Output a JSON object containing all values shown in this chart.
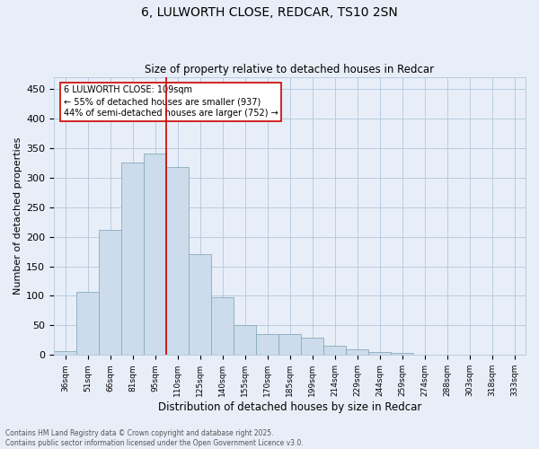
{
  "title_line1": "6, LULWORTH CLOSE, REDCAR, TS10 2SN",
  "title_line2": "Size of property relative to detached houses in Redcar",
  "xlabel": "Distribution of detached houses by size in Redcar",
  "ylabel": "Number of detached properties",
  "categories": [
    "36sqm",
    "51sqm",
    "66sqm",
    "81sqm",
    "95sqm",
    "110sqm",
    "125sqm",
    "140sqm",
    "155sqm",
    "170sqm",
    "185sqm",
    "199sqm",
    "214sqm",
    "229sqm",
    "244sqm",
    "259sqm",
    "274sqm",
    "288sqm",
    "303sqm",
    "318sqm",
    "333sqm"
  ],
  "values": [
    7,
    107,
    211,
    325,
    340,
    318,
    170,
    98,
    50,
    36,
    36,
    29,
    15,
    9,
    5,
    4,
    1,
    1,
    0,
    0,
    1
  ],
  "bar_color": "#ccdcec",
  "bar_edge_color": "#8aaabb",
  "vline_color": "#cc0000",
  "annotation_text": "6 LULWORTH CLOSE: 109sqm\n← 55% of detached houses are smaller (937)\n44% of semi-detached houses are larger (752) →",
  "annotation_box_color": "white",
  "annotation_box_edge": "#cc0000",
  "ylim": [
    0,
    470
  ],
  "yticks": [
    0,
    50,
    100,
    150,
    200,
    250,
    300,
    350,
    400,
    450
  ],
  "grid_color": "#b8cce0",
  "background_color": "#e8eef8",
  "footer_line1": "Contains HM Land Registry data © Crown copyright and database right 2025.",
  "footer_line2": "Contains public sector information licensed under the Open Government Licence v3.0."
}
